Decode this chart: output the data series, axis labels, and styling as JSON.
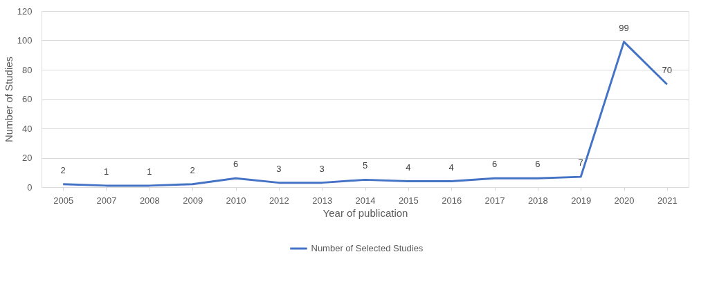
{
  "chart_data": {
    "type": "line",
    "xlabel": "Year of publication",
    "ylabel": "Number of Studies",
    "categories": [
      "2005",
      "2007",
      "2008",
      "2009",
      "2010",
      "2012",
      "2013",
      "2014",
      "2015",
      "2016",
      "2017",
      "2018",
      "2019",
      "2020",
      "2021"
    ],
    "series": [
      {
        "name": "Number of Selected Studies",
        "color": "#4472c4",
        "values": [
          2,
          1,
          1,
          2,
          6,
          3,
          3,
          5,
          4,
          4,
          6,
          6,
          7,
          99,
          70
        ]
      }
    ],
    "ylim": [
      0,
      120
    ],
    "yticks": [
      0,
      20,
      40,
      60,
      80,
      100,
      120
    ],
    "grid": "y",
    "legend": "bottom",
    "data_labels": true,
    "marker": "none",
    "line_style": "solid"
  }
}
